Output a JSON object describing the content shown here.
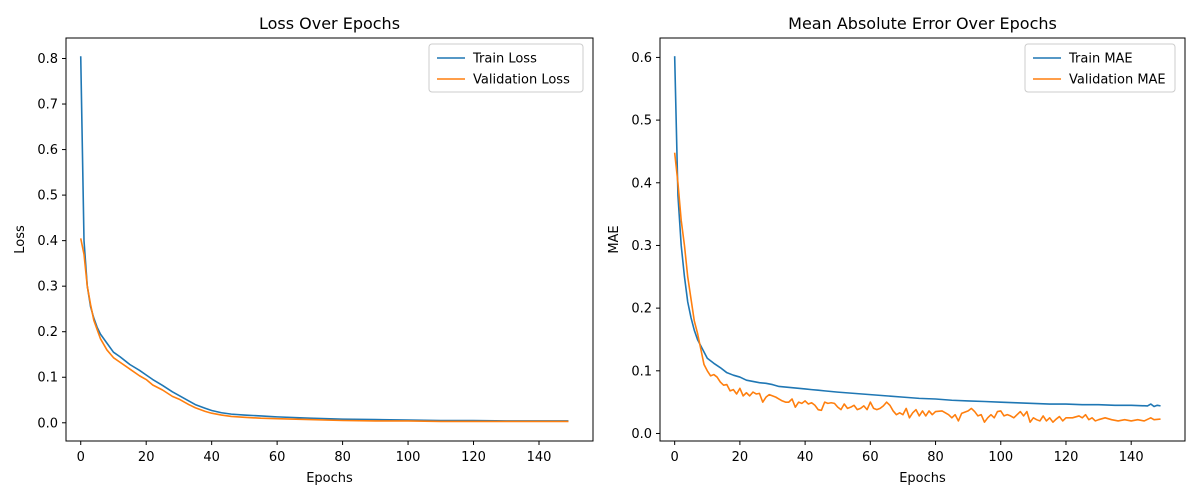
{
  "chart_data": [
    {
      "type": "line",
      "title": "Loss Over Epochs",
      "xlabel": "Epochs",
      "ylabel": "Loss",
      "xlim": [
        -4.5,
        156.5
      ],
      "ylim": [
        -0.04,
        0.845
      ],
      "xticks": [
        0,
        20,
        40,
        60,
        80,
        100,
        120,
        140
      ],
      "yticks": [
        0.0,
        0.1,
        0.2,
        0.3,
        0.4,
        0.5,
        0.6,
        0.7,
        0.8
      ],
      "ytick_labels": [
        "0.0",
        "0.1",
        "0.2",
        "0.3",
        "0.4",
        "0.5",
        "0.6",
        "0.7",
        "0.8"
      ],
      "legend_position": "top-right",
      "grid": false,
      "series": [
        {
          "name": "Train Loss",
          "color": "#1f77b4",
          "points": [
            [
              0,
              0.805
            ],
            [
              1,
              0.4
            ],
            [
              2,
              0.3
            ],
            [
              3,
              0.255
            ],
            [
              4,
              0.23
            ],
            [
              5,
              0.21
            ],
            [
              6,
              0.195
            ],
            [
              8,
              0.175
            ],
            [
              10,
              0.155
            ],
            [
              12,
              0.145
            ],
            [
              15,
              0.128
            ],
            [
              18,
              0.115
            ],
            [
              20,
              0.105
            ],
            [
              22,
              0.095
            ],
            [
              25,
              0.082
            ],
            [
              28,
              0.068
            ],
            [
              30,
              0.06
            ],
            [
              33,
              0.048
            ],
            [
              35,
              0.04
            ],
            [
              38,
              0.032
            ],
            [
              40,
              0.027
            ],
            [
              43,
              0.022
            ],
            [
              46,
              0.019
            ],
            [
              50,
              0.017
            ],
            [
              55,
              0.015
            ],
            [
              60,
              0.013
            ],
            [
              70,
              0.01
            ],
            [
              80,
              0.008
            ],
            [
              90,
              0.007
            ],
            [
              100,
              0.006
            ],
            [
              110,
              0.005
            ],
            [
              120,
              0.005
            ],
            [
              130,
              0.004
            ],
            [
              140,
              0.004
            ],
            [
              149,
              0.004
            ]
          ]
        },
        {
          "name": "Validation Loss",
          "color": "#ff7f0e",
          "points": [
            [
              0,
              0.405
            ],
            [
              1,
              0.37
            ],
            [
              2,
              0.3
            ],
            [
              3,
              0.26
            ],
            [
              4,
              0.225
            ],
            [
              5,
              0.205
            ],
            [
              6,
              0.185
            ],
            [
              8,
              0.16
            ],
            [
              10,
              0.143
            ],
            [
              12,
              0.133
            ],
            [
              15,
              0.118
            ],
            [
              18,
              0.103
            ],
            [
              20,
              0.095
            ],
            [
              22,
              0.083
            ],
            [
              25,
              0.072
            ],
            [
              28,
              0.058
            ],
            [
              30,
              0.052
            ],
            [
              33,
              0.04
            ],
            [
              35,
              0.033
            ],
            [
              38,
              0.025
            ],
            [
              40,
              0.021
            ],
            [
              43,
              0.017
            ],
            [
              46,
              0.014
            ],
            [
              50,
              0.012
            ],
            [
              55,
              0.01
            ],
            [
              60,
              0.009
            ],
            [
              70,
              0.007
            ],
            [
              80,
              0.005
            ],
            [
              90,
              0.004
            ],
            [
              100,
              0.004
            ],
            [
              110,
              0.003
            ],
            [
              120,
              0.003
            ],
            [
              130,
              0.003
            ],
            [
              140,
              0.003
            ],
            [
              149,
              0.003
            ]
          ]
        }
      ]
    },
    {
      "type": "line",
      "title": "Mean Absolute Error Over Epochs",
      "xlabel": "Epochs",
      "ylabel": "MAE",
      "xlim": [
        -4.5,
        156.5
      ],
      "ylim": [
        -0.012,
        0.631
      ],
      "xticks": [
        0,
        20,
        40,
        60,
        80,
        100,
        120,
        140
      ],
      "yticks": [
        0.0,
        0.1,
        0.2,
        0.3,
        0.4,
        0.5,
        0.6
      ],
      "ytick_labels": [
        "0.0",
        "0.1",
        "0.2",
        "0.3",
        "0.4",
        "0.5",
        "0.6"
      ],
      "legend_position": "top-right",
      "grid": false,
      "series": [
        {
          "name": "Train MAE",
          "color": "#1f77b4",
          "points": [
            [
              0,
              0.602
            ],
            [
              1,
              0.38
            ],
            [
              2,
              0.3
            ],
            [
              3,
              0.25
            ],
            [
              4,
              0.21
            ],
            [
              5,
              0.185
            ],
            [
              6,
              0.165
            ],
            [
              7,
              0.15
            ],
            [
              8,
              0.14
            ],
            [
              9,
              0.13
            ],
            [
              10,
              0.12
            ],
            [
              12,
              0.112
            ],
            [
              14,
              0.105
            ],
            [
              16,
              0.097
            ],
            [
              18,
              0.093
            ],
            [
              20,
              0.09
            ],
            [
              22,
              0.085
            ],
            [
              24,
              0.083
            ],
            [
              26,
              0.081
            ],
            [
              28,
              0.08
            ],
            [
              30,
              0.078
            ],
            [
              32,
              0.075
            ],
            [
              34,
              0.074
            ],
            [
              36,
              0.073
            ],
            [
              38,
              0.072
            ],
            [
              40,
              0.071
            ],
            [
              42,
              0.07
            ],
            [
              44,
              0.069
            ],
            [
              46,
              0.068
            ],
            [
              48,
              0.067
            ],
            [
              50,
              0.066
            ],
            [
              55,
              0.064
            ],
            [
              60,
              0.062
            ],
            [
              65,
              0.06
            ],
            [
              70,
              0.058
            ],
            [
              75,
              0.056
            ],
            [
              80,
              0.055
            ],
            [
              85,
              0.053
            ],
            [
              90,
              0.052
            ],
            [
              95,
              0.051
            ],
            [
              100,
              0.05
            ],
            [
              105,
              0.049
            ],
            [
              110,
              0.048
            ],
            [
              115,
              0.047
            ],
            [
              120,
              0.047
            ],
            [
              125,
              0.046
            ],
            [
              130,
              0.046
            ],
            [
              135,
              0.045
            ],
            [
              140,
              0.045
            ],
            [
              145,
              0.044
            ],
            [
              146,
              0.047
            ],
            [
              147,
              0.043
            ],
            [
              148,
              0.045
            ],
            [
              149,
              0.044
            ]
          ]
        },
        {
          "name": "Validation MAE",
          "color": "#ff7f0e",
          "points": [
            [
              0,
              0.448
            ],
            [
              1,
              0.4
            ],
            [
              2,
              0.34
            ],
            [
              3,
              0.3
            ],
            [
              4,
              0.25
            ],
            [
              5,
              0.215
            ],
            [
              6,
              0.18
            ],
            [
              7,
              0.16
            ],
            [
              8,
              0.135
            ],
            [
              9,
              0.11
            ],
            [
              10,
              0.1
            ],
            [
              11,
              0.092
            ],
            [
              12,
              0.094
            ],
            [
              13,
              0.09
            ],
            [
              14,
              0.082
            ],
            [
              15,
              0.077
            ],
            [
              16,
              0.078
            ],
            [
              17,
              0.068
            ],
            [
              18,
              0.07
            ],
            [
              19,
              0.063
            ],
            [
              20,
              0.072
            ],
            [
              21,
              0.06
            ],
            [
              22,
              0.065
            ],
            [
              23,
              0.06
            ],
            [
              24,
              0.066
            ],
            [
              25,
              0.063
            ],
            [
              26,
              0.064
            ],
            [
              27,
              0.05
            ],
            [
              28,
              0.058
            ],
            [
              29,
              0.062
            ],
            [
              30,
              0.06
            ],
            [
              31,
              0.058
            ],
            [
              32,
              0.055
            ],
            [
              33,
              0.052
            ],
            [
              34,
              0.05
            ],
            [
              35,
              0.05
            ],
            [
              36,
              0.055
            ],
            [
              37,
              0.042
            ],
            [
              38,
              0.05
            ],
            [
              39,
              0.048
            ],
            [
              40,
              0.052
            ],
            [
              41,
              0.047
            ],
            [
              42,
              0.049
            ],
            [
              43,
              0.045
            ],
            [
              44,
              0.038
            ],
            [
              45,
              0.037
            ],
            [
              46,
              0.05
            ],
            [
              47,
              0.048
            ],
            [
              48,
              0.049
            ],
            [
              49,
              0.048
            ],
            [
              50,
              0.042
            ],
            [
              51,
              0.038
            ],
            [
              52,
              0.047
            ],
            [
              53,
              0.04
            ],
            [
              54,
              0.042
            ],
            [
              55,
              0.045
            ],
            [
              56,
              0.038
            ],
            [
              57,
              0.04
            ],
            [
              58,
              0.044
            ],
            [
              59,
              0.038
            ],
            [
              60,
              0.05
            ],
            [
              61,
              0.04
            ],
            [
              62,
              0.038
            ],
            [
              63,
              0.04
            ],
            [
              64,
              0.044
            ],
            [
              65,
              0.05
            ],
            [
              66,
              0.045
            ],
            [
              67,
              0.036
            ],
            [
              68,
              0.03
            ],
            [
              69,
              0.033
            ],
            [
              70,
              0.03
            ],
            [
              71,
              0.04
            ],
            [
              72,
              0.025
            ],
            [
              73,
              0.033
            ],
            [
              74,
              0.038
            ],
            [
              75,
              0.028
            ],
            [
              76,
              0.036
            ],
            [
              77,
              0.028
            ],
            [
              78,
              0.036
            ],
            [
              79,
              0.03
            ],
            [
              80,
              0.035
            ],
            [
              82,
              0.036
            ],
            [
              84,
              0.03
            ],
            [
              85,
              0.025
            ],
            [
              86,
              0.03
            ],
            [
              87,
              0.02
            ],
            [
              88,
              0.032
            ],
            [
              90,
              0.036
            ],
            [
              91,
              0.04
            ],
            [
              92,
              0.035
            ],
            [
              93,
              0.028
            ],
            [
              94,
              0.03
            ],
            [
              95,
              0.018
            ],
            [
              96,
              0.025
            ],
            [
              97,
              0.03
            ],
            [
              98,
              0.025
            ],
            [
              99,
              0.035
            ],
            [
              100,
              0.036
            ],
            [
              101,
              0.028
            ],
            [
              102,
              0.03
            ],
            [
              103,
              0.028
            ],
            [
              104,
              0.025
            ],
            [
              105,
              0.03
            ],
            [
              106,
              0.035
            ],
            [
              107,
              0.028
            ],
            [
              108,
              0.035
            ],
            [
              109,
              0.018
            ],
            [
              110,
              0.025
            ],
            [
              111,
              0.022
            ],
            [
              112,
              0.02
            ],
            [
              113,
              0.028
            ],
            [
              114,
              0.02
            ],
            [
              115,
              0.025
            ],
            [
              116,
              0.018
            ],
            [
              117,
              0.023
            ],
            [
              118,
              0.027
            ],
            [
              119,
              0.02
            ],
            [
              120,
              0.025
            ],
            [
              122,
              0.025
            ],
            [
              124,
              0.028
            ],
            [
              125,
              0.025
            ],
            [
              126,
              0.03
            ],
            [
              127,
              0.022
            ],
            [
              128,
              0.025
            ],
            [
              129,
              0.02
            ],
            [
              130,
              0.022
            ],
            [
              132,
              0.025
            ],
            [
              134,
              0.022
            ],
            [
              136,
              0.02
            ],
            [
              138,
              0.022
            ],
            [
              140,
              0.02
            ],
            [
              142,
              0.022
            ],
            [
              144,
              0.02
            ],
            [
              146,
              0.025
            ],
            [
              147,
              0.022
            ],
            [
              149,
              0.023
            ]
          ]
        }
      ]
    }
  ]
}
